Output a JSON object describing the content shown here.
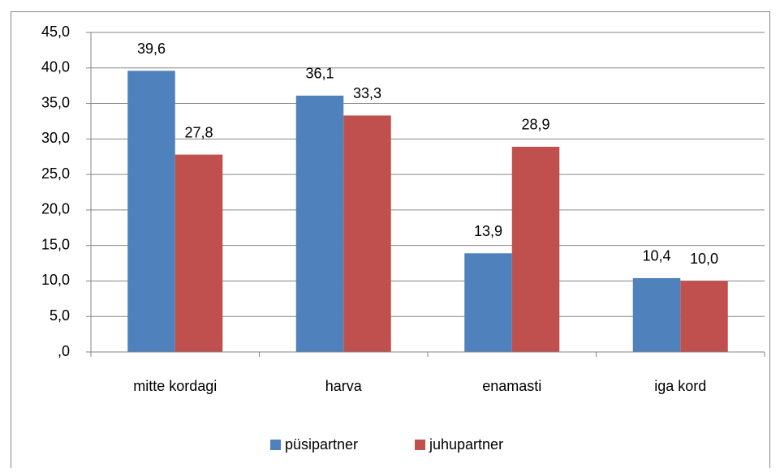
{
  "chart_data": {
    "type": "bar",
    "categories": [
      "mitte kordagi",
      "harva",
      "enamasti",
      "iga kord"
    ],
    "series": [
      {
        "name": "püsipartner",
        "color": "#4f81bd",
        "values": [
          39.6,
          36.1,
          13.9,
          10.4
        ],
        "value_labels": [
          "39,6",
          "36,1",
          "13,9",
          "10,4"
        ]
      },
      {
        "name": "juhupartner",
        "color": "#c0504d",
        "values": [
          27.8,
          33.3,
          28.9,
          10.0
        ],
        "value_labels": [
          "27,8",
          "33,3",
          "28,9",
          "10,0"
        ]
      }
    ],
    "ylim": [
      0,
      45
    ],
    "yticks": [
      {
        "value": 0,
        "label": ",0"
      },
      {
        "value": 5,
        "label": "5,0"
      },
      {
        "value": 10,
        "label": "10,0"
      },
      {
        "value": 15,
        "label": "15,0"
      },
      {
        "value": 20,
        "label": "20,0"
      },
      {
        "value": 25,
        "label": "25,0"
      },
      {
        "value": 30,
        "label": "30,0"
      },
      {
        "value": 35,
        "label": "35,0"
      },
      {
        "value": 40,
        "label": "40,0"
      },
      {
        "value": 45,
        "label": "45,0"
      }
    ],
    "grid": true,
    "legend": "bottom"
  }
}
